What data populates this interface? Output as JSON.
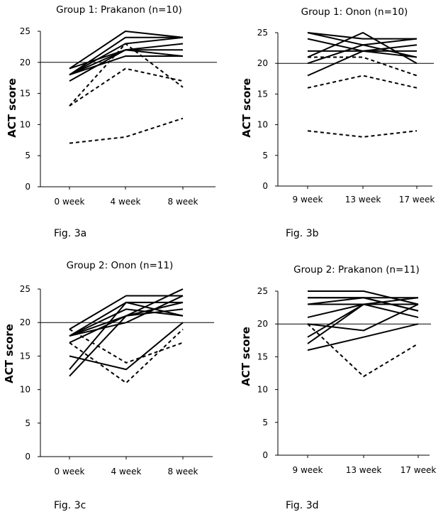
{
  "chart_data": [
    {
      "type": "line",
      "title": "Group 1: Prakanon (n=10)",
      "ylabel": "ACT score",
      "xlabel": "",
      "ylim": [
        0,
        25
      ],
      "yticks": [
        0,
        5,
        10,
        15,
        20,
        25
      ],
      "categories": [
        "0 week",
        "4 week",
        "8 week"
      ],
      "reference_line": 20,
      "caption": "Fig. 3a",
      "grid": false,
      "series": [
        {
          "style": "solid",
          "values": [
            19,
            25,
            24
          ]
        },
        {
          "style": "solid",
          "values": [
            18,
            24,
            24
          ]
        },
        {
          "style": "solid",
          "values": [
            18,
            23,
            24
          ]
        },
        {
          "style": "solid",
          "values": [
            18,
            22,
            23
          ]
        },
        {
          "style": "solid",
          "values": [
            19,
            22,
            22
          ]
        },
        {
          "style": "solid",
          "values": [
            18,
            21,
            21
          ]
        },
        {
          "style": "solid",
          "values": [
            17,
            22,
            21
          ]
        },
        {
          "style": "dashed",
          "values": [
            13,
            23,
            16
          ]
        },
        {
          "style": "dashed",
          "values": [
            13,
            19,
            17
          ]
        },
        {
          "style": "dashed",
          "values": [
            7,
            8,
            11
          ]
        }
      ]
    },
    {
      "type": "line",
      "title": "Group 1: Onon (n=10)",
      "ylabel": "ACT score",
      "xlabel": "",
      "ylim": [
        0,
        25
      ],
      "yticks": [
        0,
        5,
        10,
        15,
        20,
        25
      ],
      "categories": [
        "9 week",
        "13 week",
        "17 week"
      ],
      "reference_line": 20,
      "caption": "Fig. 3b",
      "grid": false,
      "series": [
        {
          "style": "solid",
          "values": [
            25,
            24,
            24
          ]
        },
        {
          "style": "solid",
          "values": [
            25,
            23,
            24
          ]
        },
        {
          "style": "solid",
          "values": [
            24,
            22,
            21
          ]
        },
        {
          "style": "solid",
          "values": [
            22,
            22,
            22
          ]
        },
        {
          "style": "solid",
          "values": [
            21,
            25,
            20
          ]
        },
        {
          "style": "solid",
          "values": [
            20,
            23,
            21
          ]
        },
        {
          "style": "solid",
          "values": [
            18,
            22,
            23
          ]
        },
        {
          "style": "dashed",
          "values": [
            21,
            21,
            18
          ]
        },
        {
          "style": "dashed",
          "values": [
            16,
            18,
            16
          ]
        },
        {
          "style": "dashed",
          "values": [
            9,
            8,
            9
          ]
        }
      ]
    },
    {
      "type": "line",
      "title": "Group 2: Onon (n=11)",
      "ylabel": "ACT score",
      "xlabel": "",
      "ylim": [
        0,
        25
      ],
      "yticks": [
        0,
        5,
        10,
        15,
        20,
        25
      ],
      "categories": [
        "0 week",
        "4 week",
        "8 week"
      ],
      "reference_line": 20,
      "caption": "Fig. 3c",
      "grid": false,
      "series": [
        {
          "style": "solid",
          "values": [
            19,
            24,
            24
          ]
        },
        {
          "style": "solid",
          "values": [
            18,
            23,
            23
          ]
        },
        {
          "style": "solid",
          "values": [
            18,
            21,
            25
          ]
        },
        {
          "style": "solid",
          "values": [
            18,
            20,
            24
          ]
        },
        {
          "style": "solid",
          "values": [
            17,
            21,
            22
          ]
        },
        {
          "style": "solid",
          "values": [
            13,
            23,
            21
          ]
        },
        {
          "style": "solid",
          "values": [
            12,
            21,
            23
          ]
        },
        {
          "style": "solid",
          "values": [
            15,
            13,
            20
          ]
        },
        {
          "style": "dashed",
          "values": [
            19,
            14,
            17
          ]
        },
        {
          "style": "dashed",
          "values": [
            17,
            11,
            19
          ]
        },
        {
          "style": "solid",
          "values": [
            18,
            22,
            21
          ]
        }
      ]
    },
    {
      "type": "line",
      "title": "Group 2: Prakanon (n=11)",
      "ylabel": "ACT score",
      "xlabel": "",
      "ylim": [
        0,
        25
      ],
      "yticks": [
        0,
        5,
        10,
        15,
        20,
        25
      ],
      "categories": [
        "9 week",
        "13 week",
        "17 week"
      ],
      "reference_line": 20,
      "caption": "Fig. 3d",
      "grid": false,
      "series": [
        {
          "style": "solid",
          "values": [
            25,
            25,
            23
          ]
        },
        {
          "style": "solid",
          "values": [
            24,
            24,
            24
          ]
        },
        {
          "style": "solid",
          "values": [
            23,
            24,
            22
          ]
        },
        {
          "style": "solid",
          "values": [
            23,
            23,
            24
          ]
        },
        {
          "style": "solid",
          "values": [
            21,
            23,
            23
          ]
        },
        {
          "style": "solid",
          "values": [
            20,
            19,
            23
          ]
        },
        {
          "style": "solid",
          "values": [
            18,
            23,
            21
          ]
        },
        {
          "style": "solid",
          "values": [
            17,
            23,
            23
          ]
        },
        {
          "style": "solid",
          "values": [
            16,
            18,
            20
          ]
        },
        {
          "style": "dashed",
          "values": [
            20,
            12,
            17
          ]
        },
        {
          "style": "solid",
          "values": [
            24,
            24,
            22
          ]
        }
      ]
    }
  ]
}
